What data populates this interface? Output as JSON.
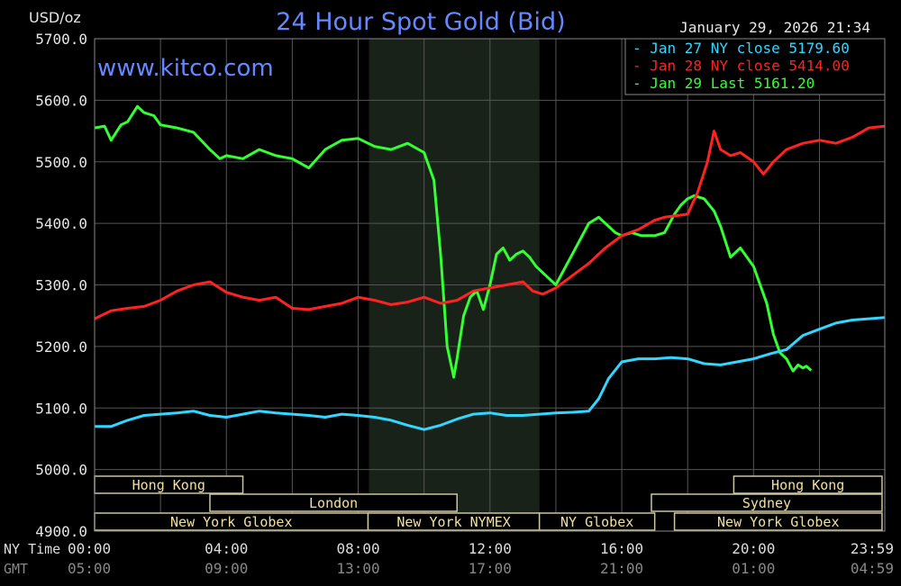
{
  "chart_data": {
    "type": "line",
    "title": "24 Hour Spot Gold (Bid)",
    "watermark": "www.kitco.com",
    "unit_label": "USD/oz",
    "timestamp": "January 29, 2026 21:34",
    "ylim": [
      4900,
      5700
    ],
    "y_ticks": [
      "5700.0",
      "5600.0",
      "5500.0",
      "5400.0",
      "5300.0",
      "5200.0",
      "5100.0",
      "5000.0",
      "4900.0"
    ],
    "x_axis_rows": [
      {
        "label": "NY Time",
        "color": "#dddddd",
        "ticks": [
          "00:00",
          "04:00",
          "08:00",
          "12:00",
          "16:00",
          "20:00",
          "23:59"
        ]
      },
      {
        "label": "GMT",
        "color": "#888888",
        "ticks": [
          "05:00",
          "09:00",
          "13:00",
          "17:00",
          "21:00",
          "01:00",
          "04:59"
        ]
      }
    ],
    "x_tick_hours": [
      0,
      4,
      8,
      12,
      16,
      20,
      23.983
    ],
    "shaded_session_hours": [
      8.33,
      13.5
    ],
    "legend": [
      {
        "prefix": "-",
        "name": "Jan 27 NY close",
        "value": "5179.60",
        "color": "#33d6ff"
      },
      {
        "prefix": "-",
        "name": "Jan 28 NY close",
        "value": "5414.00",
        "color": "#ff2222"
      },
      {
        "prefix": "-",
        "name": "Jan 29 Last",
        "value": "5161.20",
        "color": "#33ff33"
      }
    ],
    "market_sessions": [
      {
        "name": "Hong Kong",
        "start": 0.0,
        "end": 4.5,
        "row": 0
      },
      {
        "name": "Hong Kong",
        "start": 19.4,
        "end": 23.9,
        "row": 0
      },
      {
        "name": "London",
        "start": 3.5,
        "end": 11.0,
        "row": 1
      },
      {
        "name": "Sydney",
        "start": 16.9,
        "end": 23.9,
        "row": 1
      },
      {
        "name": "New York Globex",
        "start": 0.0,
        "end": 8.3,
        "row": 2
      },
      {
        "name": "New York NYMEX",
        "start": 8.3,
        "end": 13.5,
        "row": 2
      },
      {
        "name": "NY Globex",
        "start": 13.5,
        "end": 17.0,
        "row": 2
      },
      {
        "name": "New York Globex",
        "start": 17.6,
        "end": 23.9,
        "row": 2
      }
    ],
    "series": [
      {
        "name": "Jan 29 Last",
        "color": "#33ff33",
        "x": [
          0,
          0.3,
          0.5,
          0.8,
          1.0,
          1.3,
          1.5,
          1.8,
          2.0,
          2.5,
          3.0,
          3.5,
          3.8,
          4.0,
          4.5,
          5.0,
          5.5,
          6.0,
          6.5,
          7.0,
          7.5,
          8.0,
          8.5,
          9.0,
          9.5,
          10.0,
          10.3,
          10.5,
          10.7,
          10.9,
          11.0,
          11.2,
          11.4,
          11.6,
          11.8,
          12.0,
          12.2,
          12.4,
          12.6,
          12.8,
          13.0,
          13.2,
          13.4,
          13.6,
          13.8,
          14.0,
          14.3,
          14.6,
          15.0,
          15.3,
          15.6,
          15.8,
          16.0,
          16.3,
          16.6,
          17.0,
          17.3,
          17.6,
          17.8,
          18.0,
          18.2,
          18.5,
          18.8,
          19.0,
          19.3,
          19.6,
          20.0,
          20.2,
          20.4,
          20.6,
          20.8,
          21.0,
          21.2,
          21.35,
          21.5,
          21.6,
          21.75
        ],
        "values": [
          5555,
          5558,
          5535,
          5560,
          5565,
          5590,
          5580,
          5575,
          5560,
          5555,
          5548,
          5520,
          5505,
          5510,
          5505,
          5520,
          5510,
          5505,
          5490,
          5520,
          5535,
          5538,
          5525,
          5520,
          5530,
          5515,
          5470,
          5350,
          5200,
          5150,
          5180,
          5250,
          5280,
          5290,
          5260,
          5300,
          5350,
          5360,
          5340,
          5350,
          5355,
          5345,
          5330,
          5320,
          5310,
          5300,
          5330,
          5360,
          5400,
          5410,
          5395,
          5385,
          5380,
          5385,
          5380,
          5380,
          5385,
          5415,
          5430,
          5440,
          5445,
          5440,
          5420,
          5395,
          5345,
          5360,
          5330,
          5300,
          5270,
          5220,
          5190,
          5180,
          5160,
          5170,
          5165,
          5168,
          5161
        ]
      },
      {
        "name": "Jan 28 NY close",
        "color": "#ff2222",
        "x": [
          0,
          0.5,
          1.0,
          1.5,
          2.0,
          2.5,
          3.0,
          3.5,
          4.0,
          4.5,
          5.0,
          5.5,
          6.0,
          6.5,
          7.0,
          7.5,
          8.0,
          8.5,
          9.0,
          9.5,
          10.0,
          10.5,
          11.0,
          11.5,
          12.0,
          12.5,
          13.0,
          13.3,
          13.6,
          14.0,
          14.5,
          15.0,
          15.5,
          16.0,
          16.5,
          17.0,
          17.3,
          17.6,
          18.0,
          18.3,
          18.6,
          18.8,
          19.0,
          19.3,
          19.6,
          20.0,
          20.3,
          20.6,
          21.0,
          21.5,
          22.0,
          22.5,
          23.0,
          23.5,
          23.98
        ],
        "values": [
          5245,
          5258,
          5262,
          5265,
          5275,
          5290,
          5300,
          5305,
          5288,
          5280,
          5275,
          5280,
          5262,
          5260,
          5265,
          5270,
          5280,
          5275,
          5268,
          5272,
          5280,
          5270,
          5275,
          5290,
          5295,
          5300,
          5305,
          5290,
          5285,
          5295,
          5315,
          5335,
          5360,
          5380,
          5390,
          5405,
          5410,
          5412,
          5415,
          5450,
          5500,
          5550,
          5520,
          5510,
          5515,
          5500,
          5480,
          5500,
          5520,
          5530,
          5535,
          5530,
          5540,
          5555,
          5558
        ]
      },
      {
        "name": "Jan 27 NY close",
        "color": "#33d6ff",
        "x": [
          0,
          0.5,
          1.0,
          1.5,
          2.0,
          2.5,
          3.0,
          3.5,
          4.0,
          4.5,
          5.0,
          5.5,
          6.0,
          6.5,
          7.0,
          7.5,
          8.0,
          8.5,
          9.0,
          9.5,
          10.0,
          10.5,
          11.0,
          11.5,
          12.0,
          12.5,
          13.0,
          13.5,
          14.0,
          14.5,
          15.0,
          15.3,
          15.6,
          16.0,
          16.5,
          17.0,
          17.5,
          18.0,
          18.5,
          19.0,
          19.5,
          20.0,
          20.5,
          21.0,
          21.5,
          22.0,
          22.5,
          23.0,
          23.5,
          23.98
        ],
        "values": [
          5070,
          5070,
          5080,
          5088,
          5090,
          5092,
          5095,
          5088,
          5085,
          5090,
          5095,
          5092,
          5090,
          5088,
          5085,
          5090,
          5088,
          5085,
          5080,
          5072,
          5065,
          5072,
          5082,
          5090,
          5092,
          5088,
          5088,
          5090,
          5092,
          5093,
          5095,
          5115,
          5148,
          5175,
          5180,
          5180,
          5182,
          5180,
          5172,
          5170,
          5175,
          5180,
          5188,
          5195,
          5218,
          5228,
          5238,
          5243,
          5245,
          5247
        ]
      }
    ]
  }
}
